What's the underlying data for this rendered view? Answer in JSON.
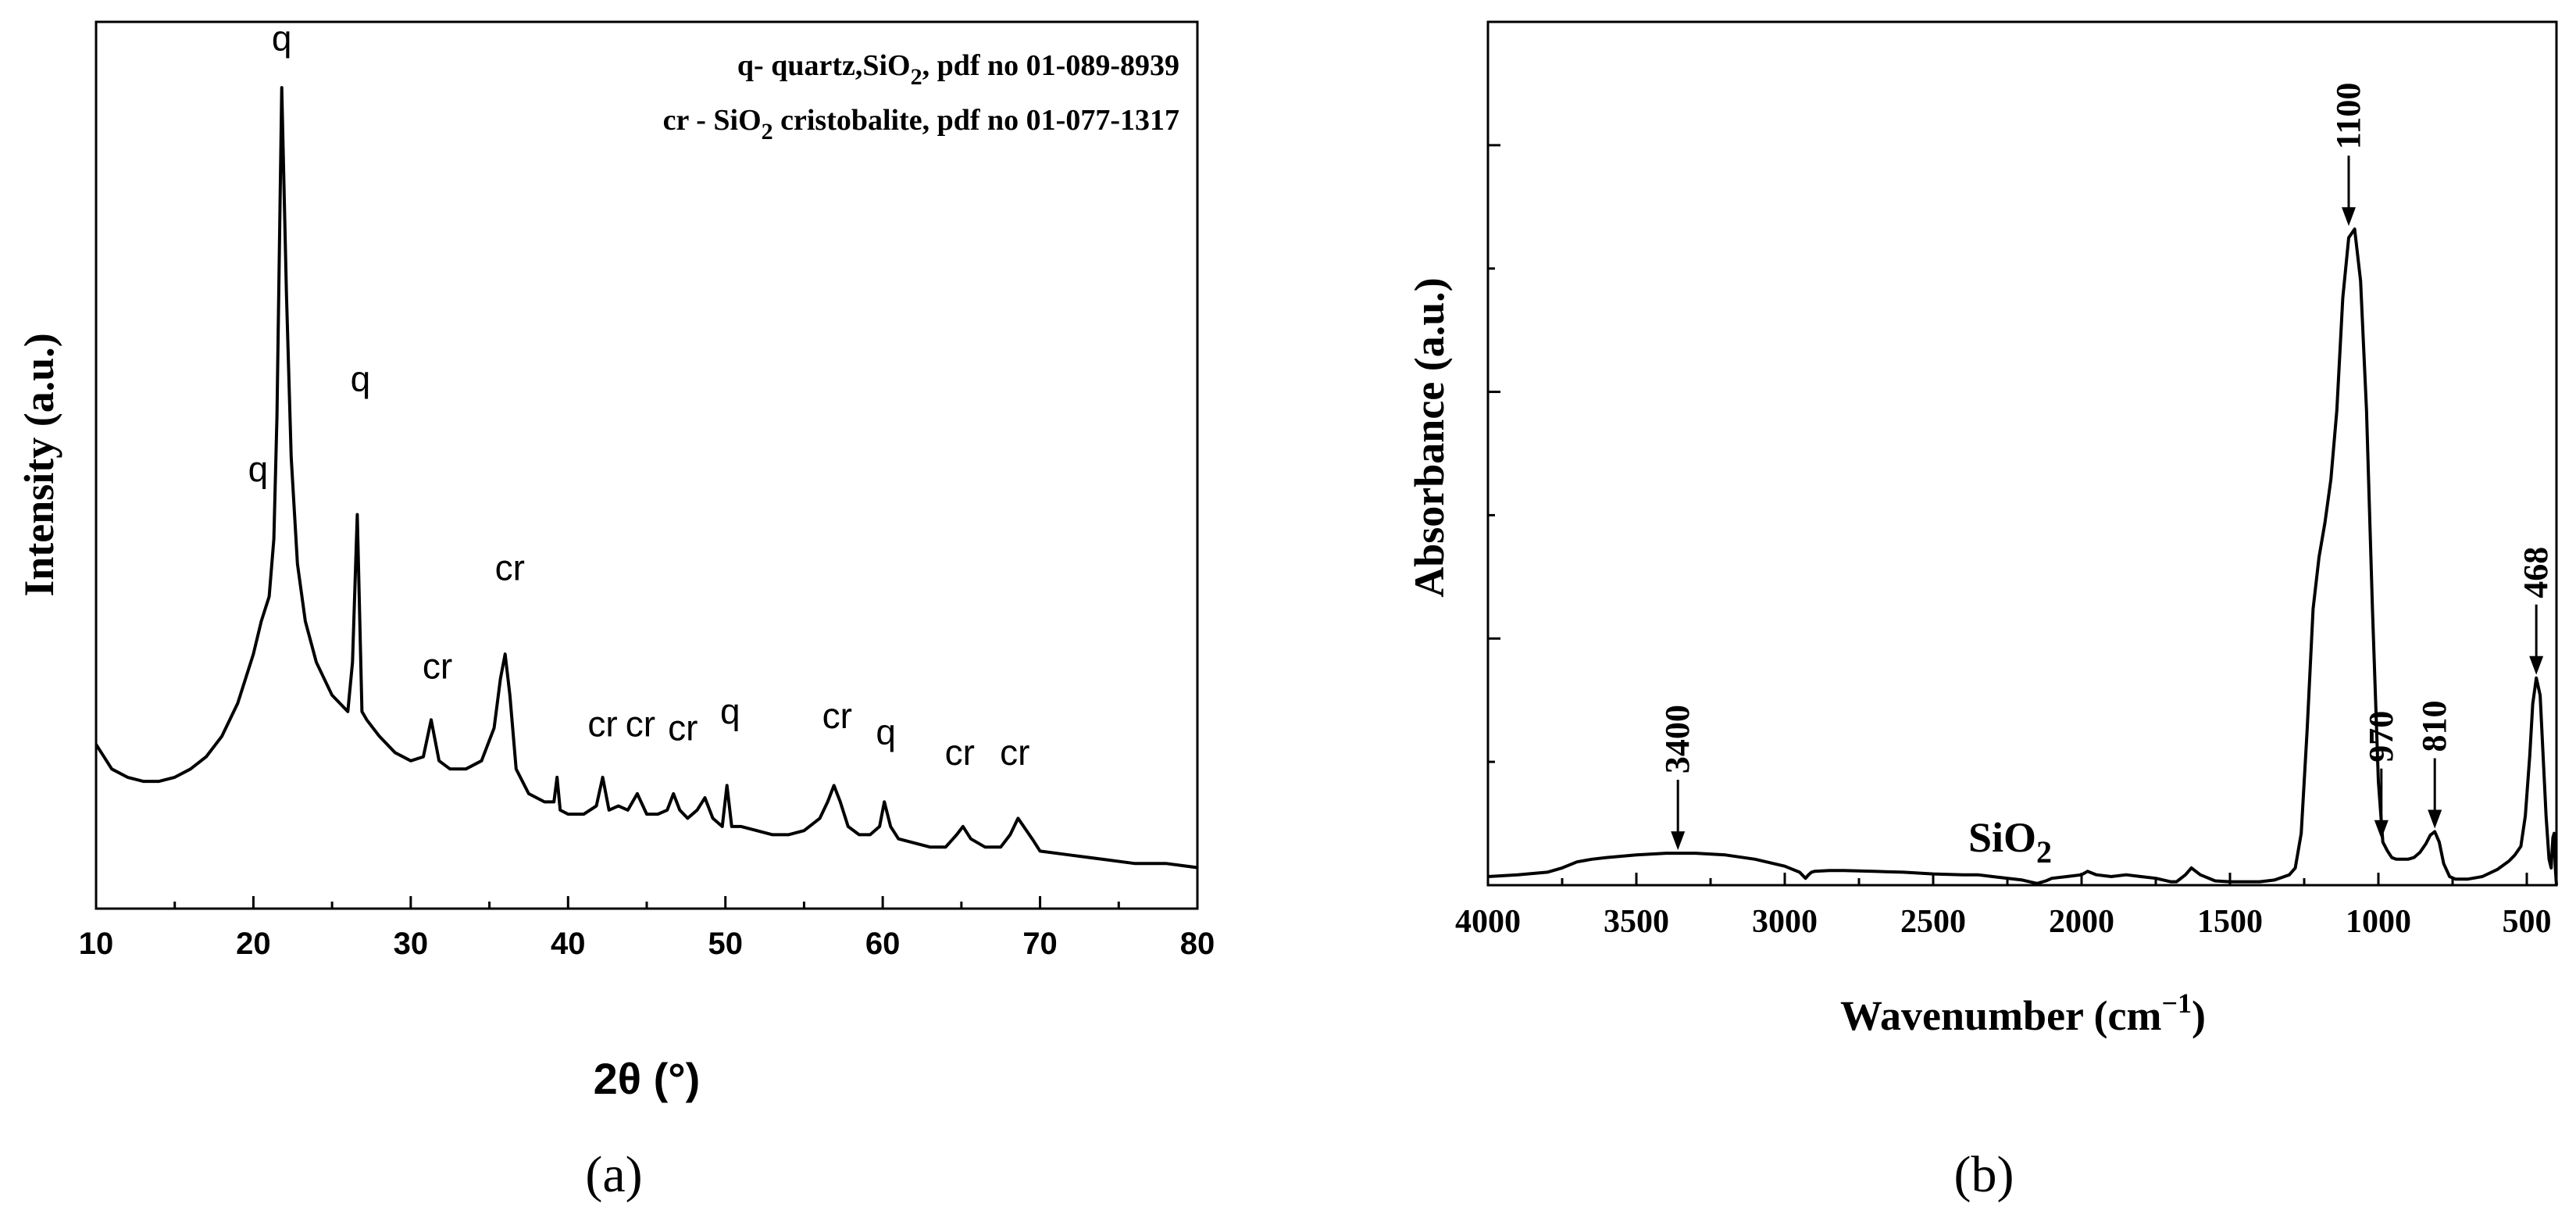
{
  "chart_data": [
    {
      "panel": "(a)",
      "type": "line",
      "xlabel": "2θ (°)",
      "ylabel": "Intensity (a.u.)",
      "xlim": [
        10,
        80
      ],
      "ylim": [
        0,
        1.08
      ],
      "xticks": [
        "10",
        "20",
        "30",
        "40",
        "50",
        "60",
        "70",
        "80"
      ],
      "y_tick_labels_shown": false,
      "legend": {
        "placement": "top-right",
        "lines": [
          {
            "prefix": "q- quartz,SiO",
            "sub": "2",
            "suffix": ", pdf no 01-089-8939"
          },
          {
            "prefix": "cr - SiO",
            "sub": "2",
            "suffix": " cristobalite, pdf no 01-077-1317"
          }
        ]
      },
      "series": [
        {
          "x": [
            10,
            11,
            12,
            13,
            14,
            15,
            16,
            17,
            18,
            19,
            20,
            20.5,
            21,
            21.3,
            21.5,
            21.8,
            22.1,
            22.4,
            22.8,
            23.3,
            24,
            25,
            26,
            26.3,
            26.6,
            26.9,
            27.2,
            28,
            29,
            30,
            30.8,
            31.3,
            31.8,
            32.5,
            33.5,
            34.5,
            35.3,
            35.7,
            36.0,
            36.3,
            36.7,
            37.5,
            38.5,
            39.1,
            39.3,
            39.5,
            40,
            41,
            41.8,
            42.2,
            42.6,
            43.2,
            43.8,
            44.4,
            45,
            45.7,
            46.3,
            46.7,
            47.1,
            47.6,
            48.2,
            48.7,
            49.2,
            49.8,
            50.1,
            50.4,
            51,
            52,
            53,
            54,
            55,
            56,
            56.5,
            56.9,
            57.3,
            57.8,
            58.5,
            59.2,
            59.8,
            60.1,
            60.5,
            61,
            62,
            63,
            64,
            64.7,
            65.1,
            65.6,
            66.5,
            67.5,
            68.1,
            68.6,
            69.5,
            70,
            72,
            74,
            76,
            78,
            80
          ],
          "y": [
            0.2,
            0.17,
            0.16,
            0.155,
            0.155,
            0.16,
            0.17,
            0.185,
            0.21,
            0.25,
            0.31,
            0.35,
            0.38,
            0.45,
            0.6,
            1.0,
            0.75,
            0.55,
            0.42,
            0.35,
            0.3,
            0.26,
            0.24,
            0.3,
            0.48,
            0.24,
            0.23,
            0.21,
            0.19,
            0.18,
            0.185,
            0.23,
            0.18,
            0.17,
            0.17,
            0.18,
            0.22,
            0.28,
            0.31,
            0.26,
            0.17,
            0.14,
            0.13,
            0.13,
            0.16,
            0.12,
            0.115,
            0.115,
            0.125,
            0.16,
            0.12,
            0.125,
            0.12,
            0.14,
            0.115,
            0.115,
            0.12,
            0.14,
            0.12,
            0.11,
            0.12,
            0.135,
            0.11,
            0.1,
            0.15,
            0.1,
            0.1,
            0.095,
            0.09,
            0.09,
            0.095,
            0.11,
            0.13,
            0.15,
            0.13,
            0.1,
            0.09,
            0.09,
            0.1,
            0.13,
            0.1,
            0.085,
            0.08,
            0.075,
            0.075,
            0.09,
            0.1,
            0.085,
            0.075,
            0.075,
            0.09,
            0.11,
            0.085,
            0.07,
            0.065,
            0.06,
            0.055,
            0.055,
            0.05
          ]
        }
      ],
      "annotations": [
        {
          "text": "q",
          "x": 20.3,
          "y": 0.52
        },
        {
          "text": "q",
          "x": 21.8,
          "y": 1.045
        },
        {
          "text": "q",
          "x": 26.8,
          "y": 0.63
        },
        {
          "text": "cr",
          "x": 31.7,
          "y": 0.28
        },
        {
          "text": "cr",
          "x": 36.3,
          "y": 0.4
        },
        {
          "text": "cr",
          "x": 42.2,
          "y": 0.21
        },
        {
          "text": "cr",
          "x": 44.6,
          "y": 0.21
        },
        {
          "text": "cr",
          "x": 47.3,
          "y": 0.205
        },
        {
          "text": "q",
          "x": 50.3,
          "y": 0.225
        },
        {
          "text": "cr",
          "x": 57.1,
          "y": 0.22
        },
        {
          "text": "q",
          "x": 60.2,
          "y": 0.2
        },
        {
          "text": "cr",
          "x": 64.9,
          "y": 0.175
        },
        {
          "text": "cr",
          "x": 68.4,
          "y": 0.175
        }
      ]
    },
    {
      "panel": "(b)",
      "type": "line",
      "xlabel": "Wavenumber (cm",
      "xlabel_sup": "−1",
      "xlabel_end": ")",
      "ylabel": "Absorbance (a.u.)",
      "xlim": [
        4000,
        400
      ],
      "x_reversed": true,
      "ylim": [
        0,
        1.0
      ],
      "xticks": [
        "4000",
        "3500",
        "3000",
        "2500",
        "2000",
        "1500",
        "1000",
        "500"
      ],
      "y_tick_labels_shown": false,
      "sample_label": {
        "main": "SiO",
        "sub": "2"
      },
      "series": [
        {
          "x": [
            4000,
            3900,
            3800,
            3750,
            3700,
            3650,
            3600,
            3500,
            3400,
            3300,
            3200,
            3100,
            3000,
            2950,
            2930,
            2920,
            2910,
            2900,
            2850,
            2800,
            2700,
            2600,
            2500,
            2400,
            2350,
            2300,
            2200,
            2150,
            2120,
            2100,
            2050,
            2000,
            1980,
            1950,
            1900,
            1850,
            1800,
            1750,
            1700,
            1680,
            1650,
            1630,
            1600,
            1550,
            1500,
            1450,
            1400,
            1350,
            1300,
            1280,
            1260,
            1240,
            1220,
            1200,
            1180,
            1160,
            1140,
            1120,
            1100,
            1080,
            1060,
            1040,
            1020,
            1000,
            985,
            970,
            955,
            940,
            920,
            900,
            880,
            860,
            840,
            825,
            810,
            795,
            780,
            760,
            740,
            700,
            650,
            600,
            560,
            540,
            520,
            505,
            490,
            480,
            468,
            455,
            445,
            435,
            425,
            418,
            412,
            408,
            404,
            400
          ],
          "y": [
            0.01,
            0.012,
            0.015,
            0.02,
            0.027,
            0.03,
            0.032,
            0.035,
            0.037,
            0.037,
            0.035,
            0.03,
            0.022,
            0.015,
            0.008,
            0.012,
            0.015,
            0.016,
            0.017,
            0.017,
            0.016,
            0.015,
            0.013,
            0.012,
            0.012,
            0.01,
            0.006,
            0.002,
            0.005,
            0.008,
            0.01,
            0.012,
            0.016,
            0.012,
            0.01,
            0.012,
            0.01,
            0.008,
            0.004,
            0.004,
            0.012,
            0.02,
            0.012,
            0.005,
            0.004,
            0.004,
            0.004,
            0.006,
            0.012,
            0.02,
            0.06,
            0.18,
            0.32,
            0.38,
            0.42,
            0.47,
            0.55,
            0.68,
            0.75,
            0.76,
            0.7,
            0.55,
            0.32,
            0.12,
            0.05,
            0.04,
            0.032,
            0.03,
            0.03,
            0.03,
            0.032,
            0.038,
            0.048,
            0.058,
            0.062,
            0.05,
            0.025,
            0.01,
            0.007,
            0.007,
            0.01,
            0.018,
            0.028,
            0.035,
            0.045,
            0.08,
            0.15,
            0.21,
            0.24,
            0.22,
            0.15,
            0.08,
            0.03,
            0.02,
            0.055,
            0.06,
            0.02,
            0.0
          ]
        }
      ],
      "band_markers": [
        {
          "label": "3400",
          "x": 3360,
          "y": 0.037
        },
        {
          "label": "1100",
          "x": 1100,
          "y": 0.76
        },
        {
          "label": "970",
          "x": 990,
          "y": 0.05
        },
        {
          "label": "810",
          "x": 810,
          "y": 0.062
        },
        {
          "label": "468",
          "x": 468,
          "y": 0.24
        }
      ]
    }
  ]
}
